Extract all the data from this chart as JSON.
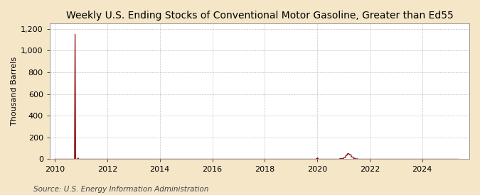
{
  "title": "Weekly U.S. Ending Stocks of Conventional Motor Gasoline, Greater than Ed55",
  "ylabel": "Thousand Barrels",
  "source": "Source: U.S. Energy Information Administration",
  "figure_bg_color": "#f5e6c8",
  "plot_bg_color": "#ffffff",
  "line_color": "#8b0000",
  "marker_color": "#cc0000",
  "ylim": [
    0,
    1250
  ],
  "yticks": [
    0,
    200,
    400,
    600,
    800,
    1000,
    1200
  ],
  "ytick_labels": [
    "0",
    "200",
    "400",
    "600",
    "800",
    "1,000",
    "1,200"
  ],
  "xlim_start": 2009.8,
  "xlim_end": 2025.8,
  "xticks": [
    2010,
    2012,
    2014,
    2016,
    2018,
    2020,
    2022,
    2024
  ],
  "title_fontsize": 10,
  "label_fontsize": 8,
  "tick_fontsize": 8,
  "source_fontsize": 7.5,
  "grid_color": "#aaaaaa",
  "spine_color": "#888888"
}
